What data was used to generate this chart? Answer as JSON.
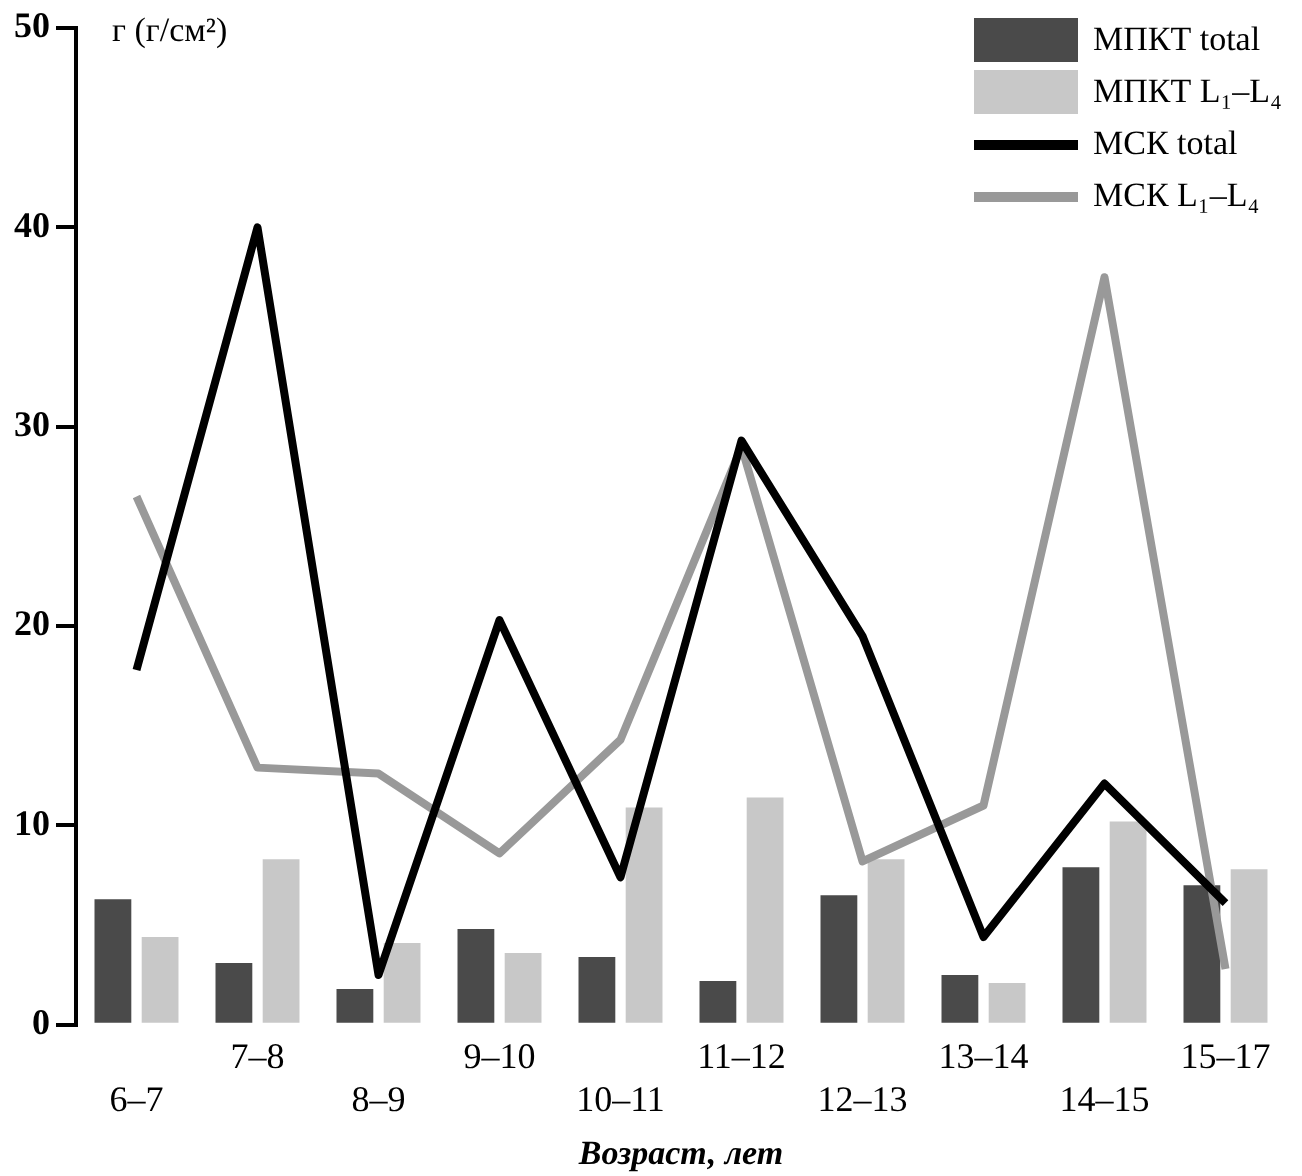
{
  "chart_data": {
    "type": "bar",
    "ylabel": "г (г/см²)",
    "xlabel": "Возраст, лет",
    "categories": [
      "6–7",
      "7–8",
      "8–9",
      "9–10",
      "10–11",
      "11–12",
      "12–13",
      "13–14",
      "14–15",
      "15–17"
    ],
    "series": [
      {
        "name": "МПКТ total",
        "color": "#4a4a4a",
        "values": [
          6.3,
          3.1,
          1.8,
          4.8,
          3.4,
          2.2,
          6.5,
          2.5,
          7.9,
          7.0
        ]
      },
      {
        "name": "МПКТ L₁–L₄",
        "color": "#c8c8c8",
        "values": [
          4.4,
          8.3,
          4.1,
          3.6,
          10.9,
          11.4,
          8.3,
          2.1,
          10.2,
          7.8
        ]
      },
      {
        "name": "МСК total",
        "type": "line",
        "color": "#000000",
        "values": [
          17.8,
          40,
          2.5,
          20.3,
          7.4,
          29.3,
          19.5,
          4.4,
          12.1,
          6.1
        ]
      },
      {
        "name": "МСК L₁–L₄",
        "type": "line",
        "color": "#999999",
        "values": [
          26.5,
          12.9,
          12.6,
          8.6,
          14.3,
          29,
          8.2,
          11,
          37.5,
          2.8
        ]
      }
    ],
    "ylim": [
      0,
      50
    ],
    "yticks": [
      0,
      10,
      20,
      30,
      40,
      50
    ],
    "grid": false,
    "legend": "top right",
    "marker": "none",
    "line_style": "solid"
  }
}
